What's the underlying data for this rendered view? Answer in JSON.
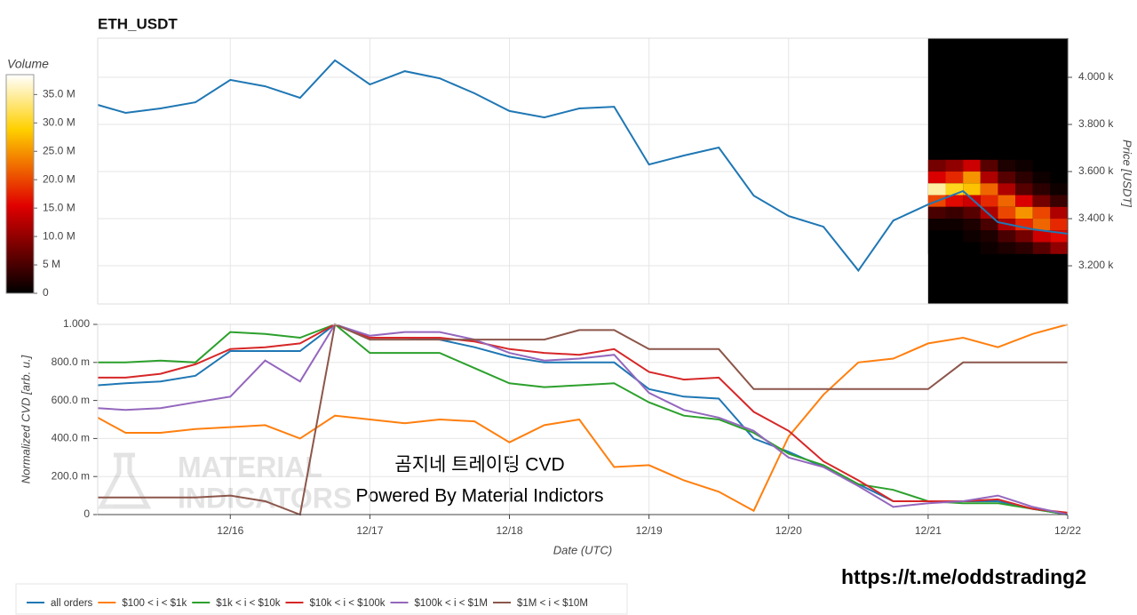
{
  "chart_data": [
    {
      "type": "line",
      "title": "ETH_USDT",
      "y_label": "Price [USDT]",
      "x": [
        15.05,
        15.25,
        15.5,
        15.75,
        16.0,
        16.25,
        16.5,
        16.75,
        17.0,
        17.25,
        17.5,
        17.75,
        18.0,
        18.25,
        18.5,
        18.75,
        19.0,
        19.25,
        19.5,
        19.75,
        20.0,
        20.25,
        20.5,
        20.75,
        21.0,
        21.25,
        21.5,
        21.75,
        22.0
      ],
      "xlim": [
        15.05,
        22
      ],
      "series": [
        {
          "color": "#1f77b4",
          "values": [
            3883,
            3849,
            3868,
            3894,
            3989,
            3962,
            3913,
            4072,
            3970,
            4026,
            3996,
            3932,
            3857,
            3830,
            3868,
            3875,
            3630,
            3668,
            3702,
            3498,
            3411,
            3366,
            3180,
            3392,
            3460,
            3517,
            3385,
            3355,
            3336
          ]
        }
      ],
      "ylim": [
        3038,
        4166
      ],
      "yticks": [
        {
          "value": 3200,
          "label": "3.200 k"
        },
        {
          "value": 3400,
          "label": "3.400 k"
        },
        {
          "value": 3600,
          "label": "3.600 k"
        },
        {
          "value": 3800,
          "label": "3.800 k"
        },
        {
          "value": 4000,
          "label": "4.000 k"
        }
      ],
      "grid": true,
      "heatmap": {
        "label": "Volume",
        "x_edges": [
          21.0,
          21.125,
          21.25,
          21.375,
          21.5,
          21.625,
          21.75,
          21.875,
          22.0
        ],
        "y_edges": [
          3650,
          3600,
          3550,
          3500,
          3450,
          3400,
          3350,
          3300,
          3250
        ],
        "z": [
          [
            8,
            10,
            14,
            6,
            2,
            1,
            0,
            0
          ],
          [
            15,
            18,
            25,
            12,
            6,
            3,
            1,
            0
          ],
          [
            35,
            30,
            28,
            22,
            12,
            6,
            3,
            1
          ],
          [
            20,
            16,
            14,
            18,
            22,
            15,
            8,
            4
          ],
          [
            5,
            4,
            6,
            12,
            20,
            25,
            20,
            12
          ],
          [
            1,
            1,
            2,
            5,
            12,
            18,
            22,
            18
          ],
          [
            0,
            0,
            1,
            2,
            5,
            8,
            14,
            16
          ],
          [
            0,
            0,
            0,
            1,
            2,
            3,
            6,
            10
          ]
        ],
        "zlim": [
          0,
          38.5
        ],
        "zticks": [
          0,
          {
            "value": 5,
            "label": "5 M"
          },
          {
            "value": 10,
            "label": "10.0 M"
          },
          {
            "value": 15,
            "label": "15.0 M"
          },
          {
            "value": 20,
            "label": "20.0 M"
          },
          {
            "value": 25,
            "label": "25.0 M"
          },
          {
            "value": 30,
            "label": "30.0 M"
          },
          {
            "value": 35,
            "label": "35.0 M"
          }
        ]
      }
    },
    {
      "type": "line",
      "y_label": "Normalized CVD [arb. u.]",
      "x_label": "Date (UTC)",
      "x": [
        15.05,
        15.25,
        15.5,
        15.75,
        16.0,
        16.25,
        16.5,
        16.75,
        17.0,
        17.25,
        17.5,
        17.75,
        18.0,
        18.25,
        18.5,
        18.75,
        19.0,
        19.25,
        19.5,
        19.75,
        20.0,
        20.25,
        20.5,
        20.75,
        21.0,
        21.25,
        21.5,
        21.75,
        22.0
      ],
      "xlim": [
        15.05,
        22
      ],
      "xticks": [
        {
          "value": 16,
          "label": "12/16"
        },
        {
          "value": 17,
          "label": "12/17"
        },
        {
          "value": 18,
          "label": "12/18"
        },
        {
          "value": 19,
          "label": "12/19"
        },
        {
          "value": 20,
          "label": "12/20"
        },
        {
          "value": 21,
          "label": "12/21"
        },
        {
          "value": 22,
          "label": "12/22"
        }
      ],
      "ylim": [
        0,
        1
      ],
      "yticks": [
        0,
        {
          "value": 0.2,
          "label": "200.0 m"
        },
        {
          "value": 0.4,
          "label": "400.0 m"
        },
        {
          "value": 0.6,
          "label": "600.0 m"
        },
        {
          "value": 0.8,
          "label": "800.0 m"
        },
        {
          "value": 1,
          "label": "1.000"
        }
      ],
      "grid": true,
      "series": [
        {
          "name": "all orders",
          "color": "#1f77b4",
          "values": [
            0.68,
            0.69,
            0.7,
            0.73,
            0.86,
            0.86,
            0.86,
            1.0,
            0.93,
            0.93,
            0.92,
            0.88,
            0.83,
            0.8,
            0.8,
            0.8,
            0.66,
            0.62,
            0.61,
            0.4,
            0.33,
            0.25,
            0.16,
            0.07,
            0.07,
            0.07,
            0.07,
            0.03,
            0.0
          ]
        },
        {
          "name": "$100 < i < $1k",
          "color": "#ff7f0e",
          "values": [
            0.51,
            0.43,
            0.43,
            0.45,
            0.46,
            0.47,
            0.4,
            0.52,
            0.5,
            0.48,
            0.5,
            0.49,
            0.38,
            0.47,
            0.5,
            0.25,
            0.26,
            0.18,
            0.12,
            0.02,
            0.41,
            0.63,
            0.8,
            0.82,
            0.9,
            0.93,
            0.88,
            0.95,
            1.0
          ]
        },
        {
          "name": "$1k < i < $10k",
          "color": "#2ca02c",
          "values": [
            0.8,
            0.8,
            0.81,
            0.8,
            0.96,
            0.95,
            0.93,
            1.0,
            0.85,
            0.85,
            0.85,
            0.77,
            0.69,
            0.67,
            0.68,
            0.69,
            0.59,
            0.52,
            0.5,
            0.43,
            0.32,
            0.26,
            0.16,
            0.13,
            0.07,
            0.06,
            0.06,
            0.03,
            0.0
          ]
        },
        {
          "name": "$10k < i < $100k",
          "color": "#d62728",
          "values": [
            0.72,
            0.72,
            0.74,
            0.79,
            0.87,
            0.88,
            0.9,
            1.0,
            0.93,
            0.93,
            0.93,
            0.91,
            0.87,
            0.85,
            0.84,
            0.87,
            0.75,
            0.71,
            0.72,
            0.54,
            0.44,
            0.28,
            0.18,
            0.07,
            0.07,
            0.07,
            0.08,
            0.03,
            0.01
          ]
        },
        {
          "name": "$100k < i < $1M",
          "color": "#9467bd",
          "values": [
            0.56,
            0.55,
            0.56,
            0.59,
            0.62,
            0.81,
            0.7,
            1.0,
            0.94,
            0.96,
            0.96,
            0.92,
            0.85,
            0.81,
            0.82,
            0.84,
            0.64,
            0.55,
            0.51,
            0.44,
            0.3,
            0.25,
            0.15,
            0.04,
            0.06,
            0.07,
            0.1,
            0.04,
            0.0
          ]
        },
        {
          "name": "$1M < i < $10M",
          "color": "#8c564b",
          "values": [
            0.09,
            0.09,
            0.09,
            0.09,
            0.1,
            0.07,
            0.0,
            1.0,
            0.92,
            0.92,
            0.92,
            0.92,
            0.92,
            0.92,
            0.97,
            0.97,
            0.87,
            0.87,
            0.87,
            0.66,
            0.66,
            0.66,
            0.66,
            0.66,
            0.66,
            0.8,
            0.8,
            0.8,
            0.8
          ]
        }
      ]
    }
  ],
  "annotations": {
    "watermark": [
      "MATERIAL",
      "INDICATORS"
    ],
    "caption": "곰지네 트레이딩 CVD",
    "powered": "Powered By Material Indictors",
    "link": "https://t.me/oddstrading2"
  }
}
